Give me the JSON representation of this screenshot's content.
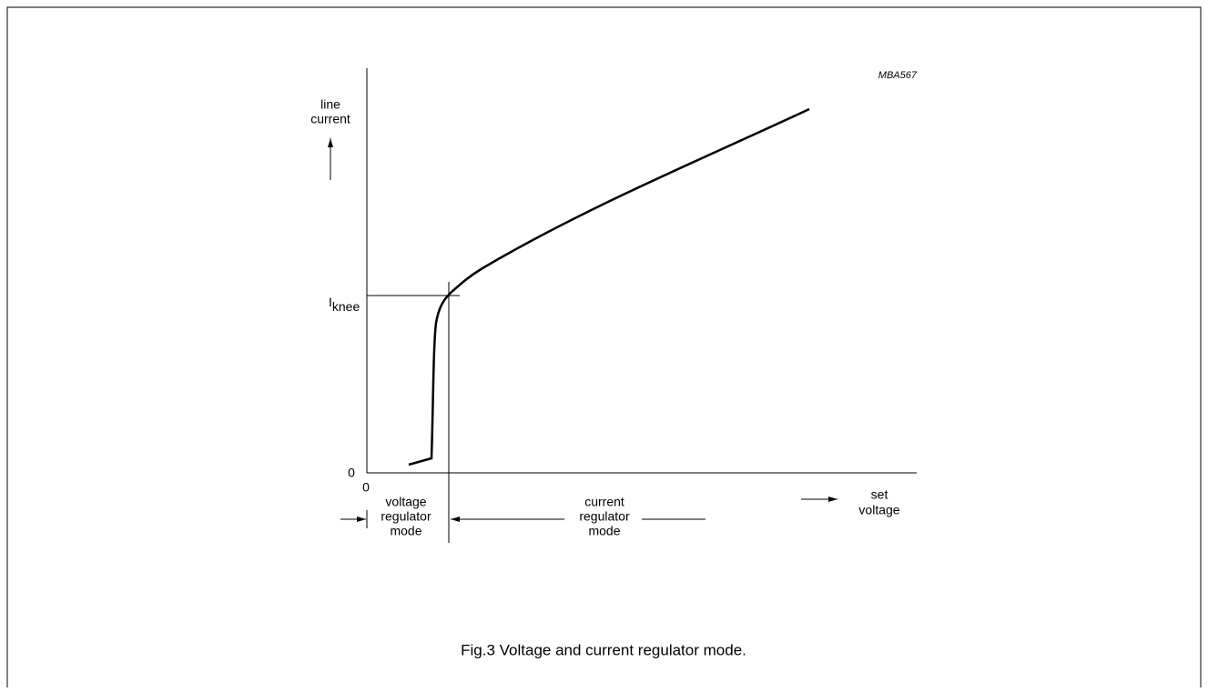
{
  "figure_id": "MBA567",
  "y_axis": {
    "label": [
      "line",
      "current"
    ],
    "knee_label": {
      "main": "I",
      "sub": "knee"
    },
    "origin": "0"
  },
  "x_axis": {
    "origin": "0",
    "label": [
      "set",
      "voltage"
    ]
  },
  "regions": [
    {
      "label": [
        "voltage",
        "regulator",
        "mode"
      ]
    },
    {
      "label": [
        "current",
        "regulator",
        "mode"
      ]
    }
  ],
  "caption": "Fig.3  Voltage and current regulator mode."
}
